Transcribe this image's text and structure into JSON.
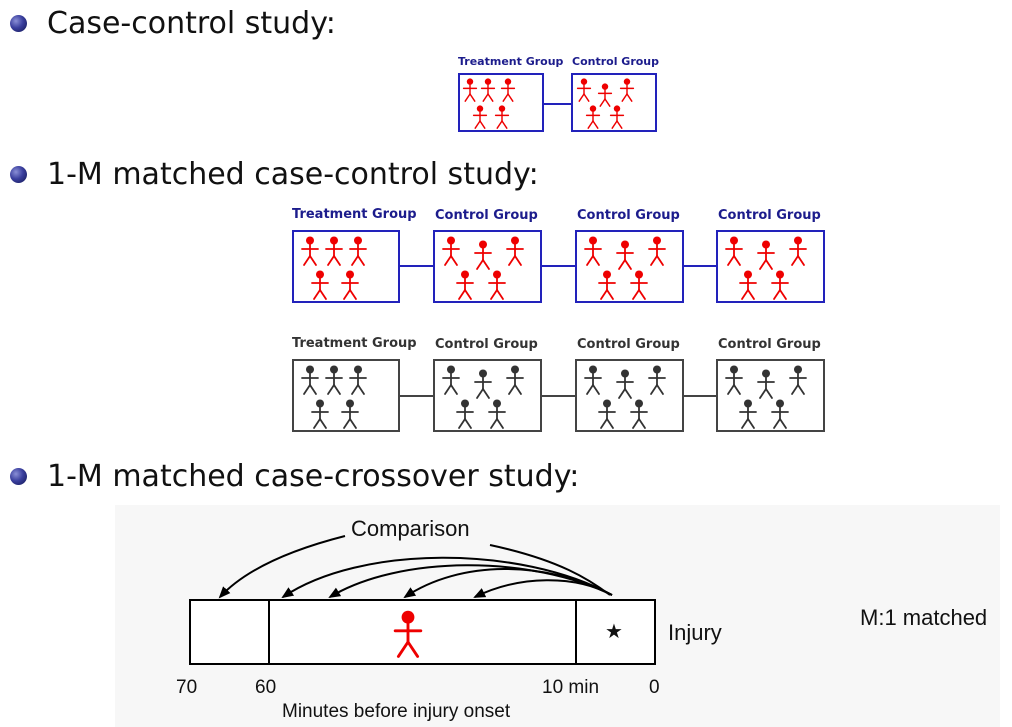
{
  "bullets": [
    "Case-control study:",
    "1-M matched case-control study:",
    "1-M matched case-crossover study:"
  ],
  "small_diagram": {
    "treatment_label": "Treatment Group",
    "control_label": "Control Group"
  },
  "matched_rows": {
    "labels": [
      "Treatment Group",
      "Control Group",
      "Control Group",
      "Control Group"
    ]
  },
  "crossover": {
    "comparison_label": "Comparison",
    "injury_label": "Injury",
    "axis_ticks": [
      "70",
      "60",
      "10 min",
      "0"
    ],
    "axis_title": "Minutes before injury onset",
    "star_symbol": "★",
    "side_note": "M:1 matched"
  },
  "colors": {
    "case_figure": "#ee0000",
    "dark_figure": "#333333",
    "group_border": "#2222bb"
  }
}
